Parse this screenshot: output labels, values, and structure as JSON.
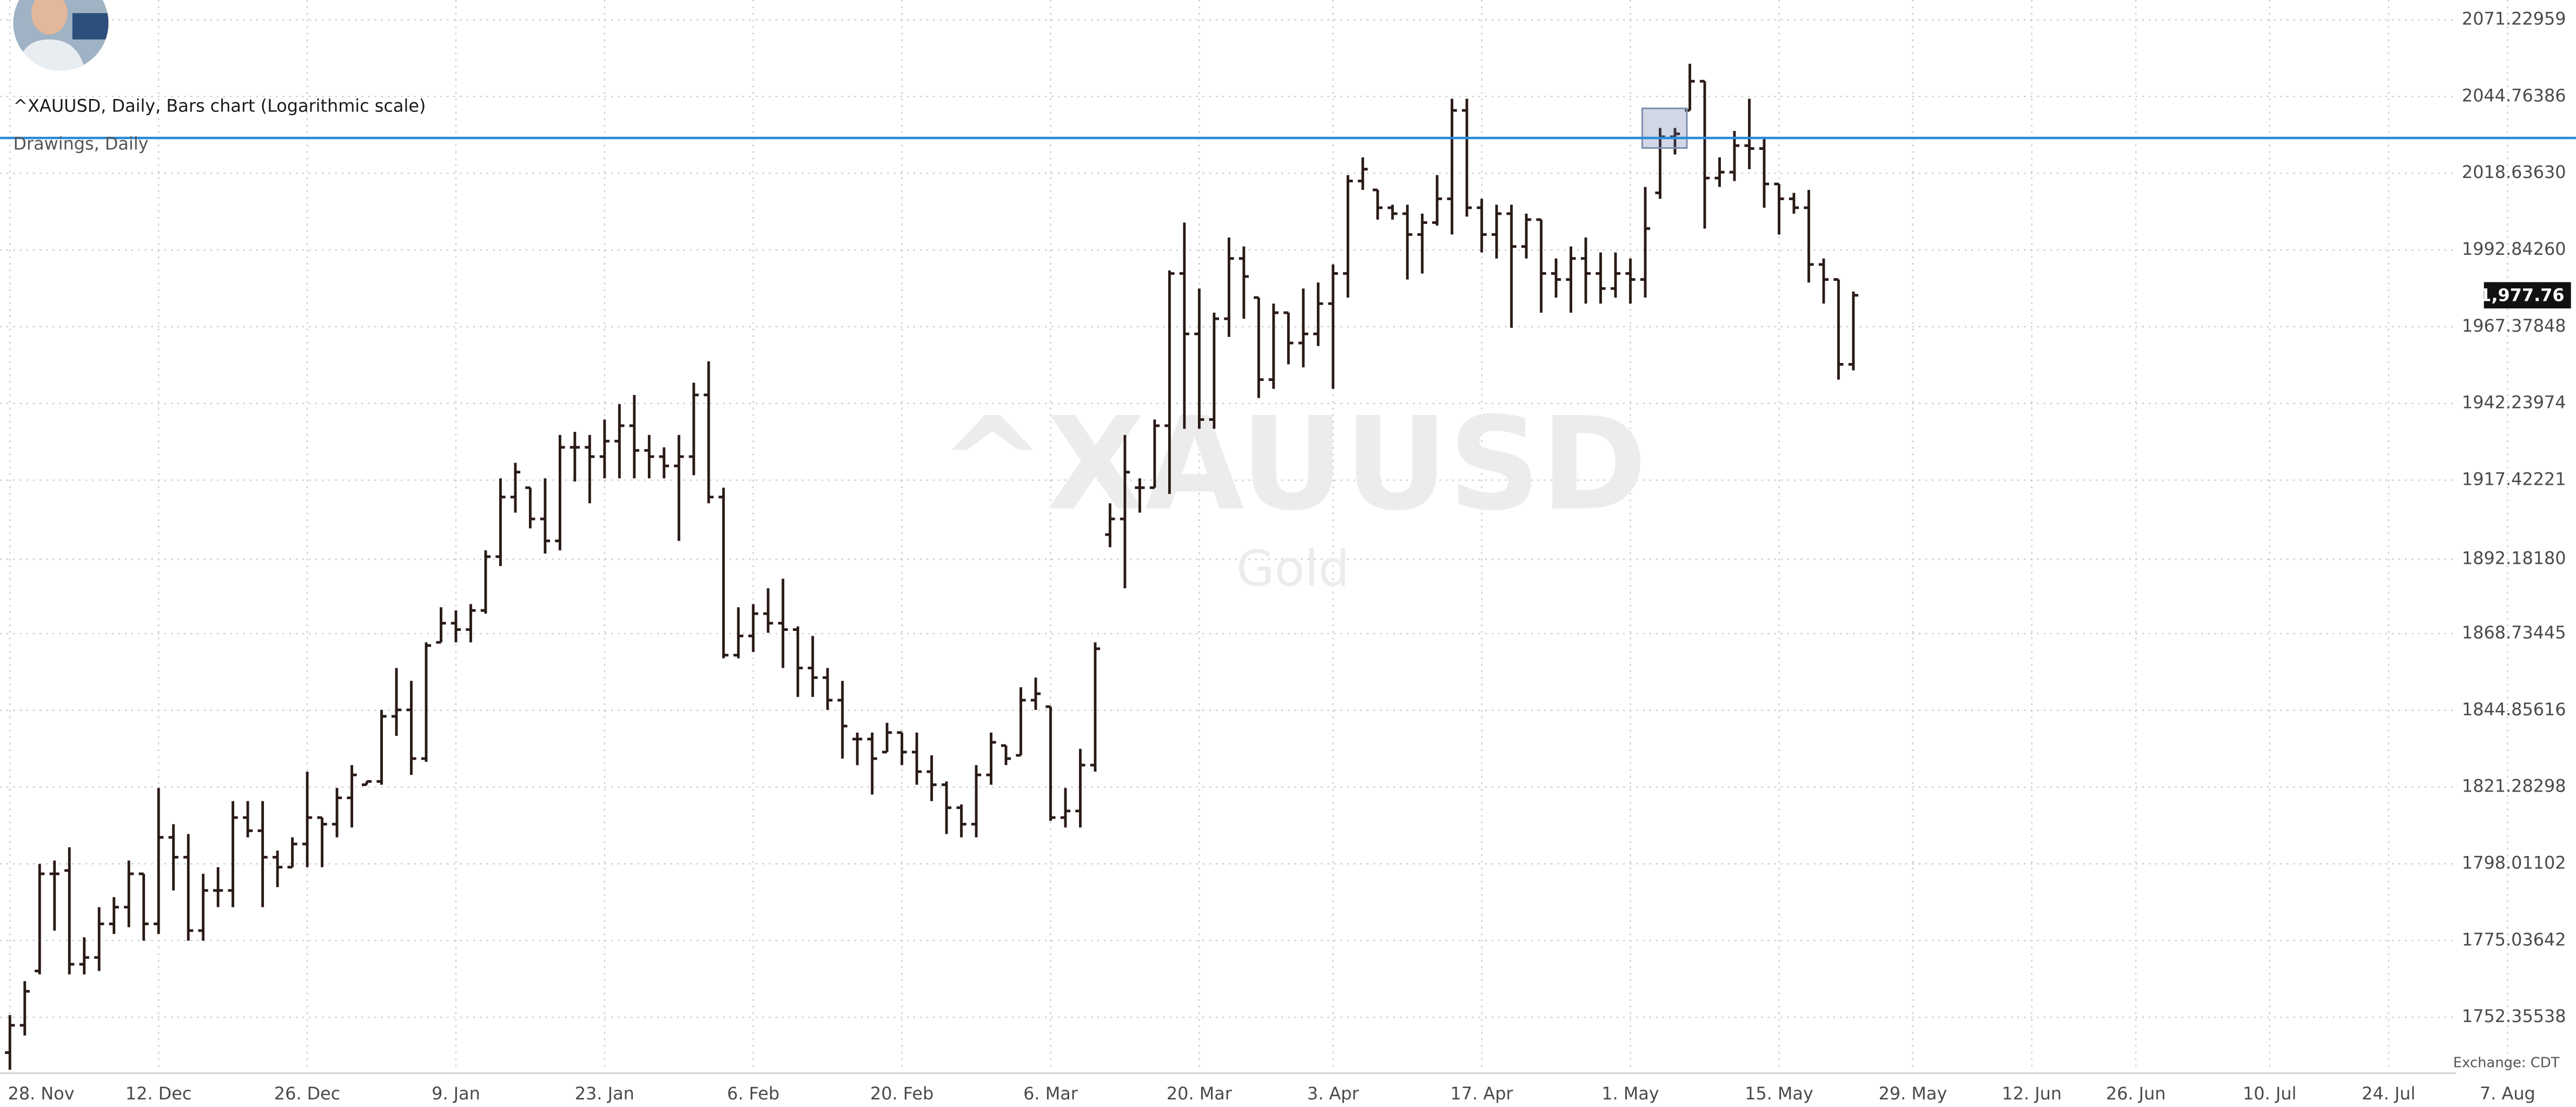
{
  "chart_data": {
    "type": "ohlc",
    "title": "^XAUUSD, Daily, Bars chart (Logarithmic scale)",
    "subtitle": "Drawings, Daily",
    "watermark": "^XAUUSD",
    "watermark_subtitle": "Gold",
    "footnote": "Exchange: CDT",
    "log_scale": true,
    "grid": true,
    "color": "#2a1a16",
    "x": [
      0,
      1,
      2,
      3,
      4,
      5,
      6,
      7,
      8,
      9,
      10,
      11,
      12,
      13,
      14,
      15,
      16,
      17,
      18,
      19,
      20,
      21,
      22,
      23,
      24,
      25,
      26,
      27,
      28,
      29,
      30,
      31,
      32,
      33,
      34,
      35,
      36,
      37,
      38,
      39,
      40,
      41,
      42,
      43,
      44,
      45,
      46,
      47,
      48,
      49,
      50,
      51,
      52,
      53,
      54,
      55,
      56,
      57,
      58,
      59,
      60,
      61,
      62,
      63,
      64,
      65,
      66,
      67,
      68,
      69,
      70,
      71,
      72,
      73,
      74,
      75,
      76,
      77,
      78,
      79,
      80,
      81,
      82,
      83,
      84,
      85,
      86,
      87,
      88,
      89,
      90,
      91,
      92,
      93,
      94,
      95,
      96,
      97,
      98,
      99,
      100,
      101,
      102,
      103,
      104,
      105,
      106,
      107,
      108,
      109,
      110,
      111,
      112,
      113,
      114,
      115,
      116,
      117,
      118,
      119,
      120,
      121,
      122,
      123,
      124
    ],
    "open": [
      1742,
      1750,
      1766,
      1795,
      1796,
      1768,
      1770,
      1780,
      1785,
      1795,
      1780,
      1806,
      1800,
      1778,
      1790,
      1790,
      1812,
      1808,
      1800,
      1797,
      1804,
      1812,
      1810,
      1818,
      1822,
      1823,
      1843,
      1845,
      1830,
      1866,
      1872,
      1870,
      1876,
      1893,
      1912,
      1915,
      1905,
      1898,
      1928,
      1928,
      1925,
      1930,
      1935,
      1927,
      1925,
      1922,
      1925,
      1945,
      1912,
      1862,
      1868,
      1875,
      1872,
      1870,
      1858,
      1855,
      1848,
      1836,
      1836,
      1832,
      1838,
      1832,
      1826,
      1822,
      1815,
      1810,
      1825,
      1834,
      1831,
      1848,
      1846,
      1812,
      1814,
      1828,
      1900,
      1905,
      1915,
      1915,
      1935,
      1985,
      1965,
      1937,
      1970,
      1990,
      1977,
      1950,
      1972,
      1962,
      1965,
      1975,
      1985,
      2016,
      2013,
      2007,
      2005,
      1998,
      2002,
      2010,
      2040,
      2007,
      1998,
      2005,
      1994,
      2003,
      1985,
      1983,
      1990,
      1985,
      1980,
      1985,
      1983,
      2012,
      2031,
      2040,
      2050,
      2017,
      2019,
      2028,
      2027,
      2015,
      2010,
      2007,
      1988,
      1983,
      1955
    ],
    "high": [
      1753,
      1763,
      1798,
      1799,
      1803,
      1776,
      1785,
      1788,
      1799,
      1795,
      1821,
      1810,
      1807,
      1795,
      1797,
      1817,
      1817,
      1817,
      1802,
      1806,
      1826,
      1812,
      1821,
      1828,
      1823,
      1845,
      1858,
      1854,
      1866,
      1877,
      1876,
      1878,
      1895,
      1918,
      1923,
      1915,
      1918,
      1932,
      1933,
      1932,
      1937,
      1942,
      1945,
      1932,
      1928,
      1932,
      1949,
      1956,
      1915,
      1877,
      1878,
      1883,
      1886,
      1871,
      1868,
      1858,
      1854,
      1838,
      1838,
      1841,
      1838,
      1838,
      1831,
      1823,
      1816,
      1828,
      1838,
      1834,
      1852,
      1855,
      1846,
      1821,
      1833,
      1866,
      1910,
      1932,
      1918,
      1937,
      1986,
      2002,
      1980,
      1972,
      1997,
      1994,
      1977,
      1975,
      1972,
      1980,
      1982,
      1988,
      2018,
      2024,
      2013,
      2008,
      2008,
      2005,
      2018,
      2044,
      2044,
      2010,
      2008,
      2008,
      2005,
      2003,
      1990,
      1994,
      1997,
      1992,
      1992,
      1990,
      2014,
      2034,
      2034,
      2056,
      2050,
      2024,
      2033,
      2044,
      2031,
      2015,
      2012,
      2013,
      1990,
      1983,
      1979
    ],
    "low": [
      1737,
      1747,
      1765,
      1778,
      1765,
      1765,
      1766,
      1777,
      1779,
      1775,
      1777,
      1790,
      1775,
      1775,
      1785,
      1785,
      1806,
      1785,
      1791,
      1797,
      1797,
      1797,
      1806,
      1809,
      1822,
      1822,
      1837,
      1825,
      1829,
      1866,
      1866,
      1866,
      1875,
      1890,
      1907,
      1902,
      1894,
      1895,
      1917,
      1910,
      1918,
      1918,
      1918,
      1918,
      1918,
      1898,
      1919,
      1910,
      1861,
      1861,
      1863,
      1869,
      1858,
      1849,
      1849,
      1845,
      1830,
      1828,
      1819,
      1832,
      1828,
      1822,
      1817,
      1807,
      1806,
      1806,
      1822,
      1828,
      1831,
      1845,
      1811,
      1809,
      1809,
      1826,
      1896,
      1883,
      1907,
      1915,
      1913,
      1934,
      1934,
      1934,
      1964,
      1970,
      1944,
      1947,
      1955,
      1954,
      1961,
      1947,
      1977,
      2013,
      2003,
      2003,
      1983,
      1985,
      2001,
      1998,
      2004,
      1992,
      1990,
      1967,
      1990,
      1972,
      1977,
      1972,
      1975,
      1975,
      1977,
      1975,
      1977,
      2010,
      2025,
      2040,
      2000,
      2014,
      2016,
      2020,
      2007,
      1998,
      2005,
      1982,
      1975,
      1950,
      1953
    ],
    "close": [
      1750,
      1760,
      1795,
      1795,
      1768,
      1770,
      1780,
      1785,
      1795,
      1780,
      1806,
      1800,
      1778,
      1790,
      1790,
      1812,
      1808,
      1800,
      1797,
      1804,
      1812,
      1810,
      1818,
      1825,
      1823,
      1843,
      1845,
      1830,
      1865,
      1872,
      1870,
      1876,
      1893,
      1912,
      1920,
      1905,
      1898,
      1928,
      1928,
      1925,
      1930,
      1935,
      1927,
      1925,
      1922,
      1925,
      1945,
      1912,
      1862,
      1868,
      1875,
      1872,
      1870,
      1858,
      1855,
      1848,
      1840,
      1836,
      1830,
      1838,
      1832,
      1826,
      1822,
      1815,
      1810,
      1825,
      1835,
      1830,
      1848,
      1850,
      1812,
      1814,
      1828,
      1864,
      1905,
      1920,
      1915,
      1935,
      1985,
      1965,
      1937,
      1970,
      1990,
      1984,
      1950,
      1972,
      1962,
      1965,
      1975,
      1985,
      2016,
      2020,
      2007,
      2005,
      1998,
      2002,
      2010,
      2040,
      2007,
      1998,
      2005,
      1994,
      2003,
      1985,
      1983,
      1990,
      1985,
      1980,
      1985,
      1983,
      2000,
      2031,
      2032,
      2050,
      2017,
      2019,
      2028,
      2027,
      2015,
      2010,
      2007,
      1988,
      1983,
      1955,
      1977.76
    ],
    "last_price": {
      "value": 1977.76,
      "label": "1,977.76"
    },
    "ylim": [
      1736.5,
      2078.1
    ],
    "yticks": [
      1752.35538,
      1775.03642,
      1798.01102,
      1821.28298,
      1844.85616,
      1868.73445,
      {
        "value": 1892.1818,
        "label": "1892.18180"
      },
      1917.42221,
      1942.23974,
      1967.37848,
      {
        "value": 1992.8426,
        "label": "1992.84260"
      },
      {
        "value": 2018.6363,
        "label": "2018.63630"
      },
      2044.76386,
      2071.22959
    ],
    "xlim": [
      -0.66,
      172.6
    ],
    "xticks": [
      {
        "value": 0,
        "label": "28. Nov"
      },
      {
        "value": 10,
        "label": "12. Dec"
      },
      {
        "value": 20,
        "label": "26. Dec"
      },
      {
        "value": 30,
        "label": "9. Jan"
      },
      {
        "value": 40,
        "label": "23. Jan"
      },
      {
        "value": 50,
        "label": "6. Feb"
      },
      {
        "value": 60,
        "label": "20. Feb"
      },
      {
        "value": 70,
        "label": "6. Mar"
      },
      {
        "value": 80,
        "label": "20. Mar"
      },
      {
        "value": 89,
        "label": "3. Apr"
      },
      {
        "value": 99,
        "label": "17. Apr"
      },
      {
        "value": 109,
        "label": "1. May"
      },
      {
        "value": 119,
        "label": "15. May"
      },
      {
        "value": 128,
        "label": "29. May"
      },
      {
        "value": 136,
        "label": "12. Jun"
      },
      {
        "value": 143,
        "label": "26. Jun"
      },
      {
        "value": 152,
        "label": "10. Jul"
      },
      {
        "value": 160,
        "label": "24. Jul"
      },
      {
        "value": 168,
        "label": "7. Aug"
      }
    ],
    "drawings": {
      "horizontal_line": 2030.6,
      "horizontal_line_color": "#2b8ad8",
      "rectangle": {
        "x": [
          109.8,
          112.8
        ],
        "y": [
          2027.2,
          2040.7
        ]
      }
    }
  }
}
